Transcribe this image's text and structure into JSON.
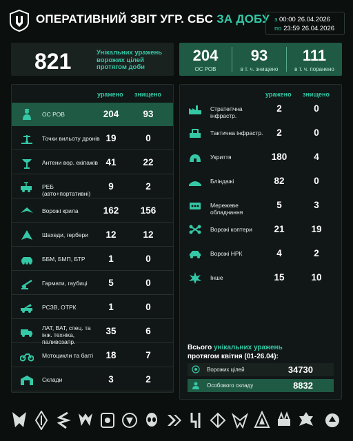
{
  "header": {
    "title_main": "ОПЕРАТИВНИЙ ЗВІТ УГР. СБС",
    "title_accent": "ЗА ДОБУ",
    "date_from_label": "з",
    "date_from": "00:00 26.04.2026",
    "date_to_label": "по",
    "date_to": "23:59 26.04.2026"
  },
  "summary": {
    "unique_total": "821",
    "unique_text": "Унікальних уражень ворожих цілей протягом доби",
    "personnel": [
      {
        "value": "204",
        "label": "ОС РОВ"
      },
      {
        "value": "93",
        "label": "в т. ч. знищено"
      },
      {
        "value": "111",
        "label": "в т. ч. поранено"
      }
    ]
  },
  "columns": {
    "hit": "уражено",
    "destroyed": "знищено"
  },
  "left_table": [
    {
      "name": "ОС РОВ",
      "hit": "204",
      "destroyed": "93",
      "icon": "soldier-icon"
    },
    {
      "name": "Точки вильоту дронів",
      "hit": "19",
      "destroyed": "0",
      "icon": "drone-launch-point-icon"
    },
    {
      "name": "Антени вор. екіпажів",
      "hit": "41",
      "destroyed": "22",
      "icon": "antenna-icon"
    },
    {
      "name": "РЕБ (авто+портативні)",
      "hit": "9",
      "destroyed": "2",
      "icon": "ew-vehicle-icon"
    },
    {
      "name": "Ворожі крила",
      "hit": "162",
      "destroyed": "156",
      "icon": "wing-drone-icon"
    },
    {
      "name": "Шахеди, гербери",
      "hit": "12",
      "destroyed": "12",
      "icon": "shahed-icon"
    },
    {
      "name": "ББМ, БМП, БТР",
      "hit": "1",
      "destroyed": "0",
      "icon": "apc-icon"
    },
    {
      "name": "Гармати, гаубиці",
      "hit": "5",
      "destroyed": "0",
      "icon": "howitzer-icon"
    },
    {
      "name": "РСЗВ, ОТРК",
      "hit": "1",
      "destroyed": "0",
      "icon": "mlrs-icon"
    },
    {
      "name": "ЛАТ, ВАТ, спец. та інж. техніка, паливозапр.",
      "hit": "35",
      "destroyed": "6",
      "icon": "truck-icon"
    },
    {
      "name": "Мотоцикли та баггі",
      "hit": "18",
      "destroyed": "7",
      "icon": "motorcycle-icon"
    },
    {
      "name": "Склади",
      "hit": "3",
      "destroyed": "2",
      "icon": "warehouse-icon"
    }
  ],
  "right_table": [
    {
      "name": "Стратегічна інфрастр.",
      "hit": "2",
      "destroyed": "0",
      "icon": "factory-icon"
    },
    {
      "name": "Тактична інфрастр.",
      "hit": "2",
      "destroyed": "0",
      "icon": "tactical-infra-icon"
    },
    {
      "name": "Укриття",
      "hit": "180",
      "destroyed": "4",
      "icon": "shelter-icon"
    },
    {
      "name": "Бліндажі",
      "hit": "82",
      "destroyed": "0",
      "icon": "dugout-icon"
    },
    {
      "name": "Мережеве обладнання",
      "hit": "5",
      "destroyed": "3",
      "icon": "network-equipment-icon"
    },
    {
      "name": "Ворожі коптери",
      "hit": "21",
      "destroyed": "19",
      "icon": "quadcopter-icon"
    },
    {
      "name": "Ворожі НРК",
      "hit": "4",
      "destroyed": "2",
      "icon": "ugv-icon"
    },
    {
      "name": "Інше",
      "hit": "15",
      "destroyed": "10",
      "icon": "explosion-icon"
    }
  ],
  "totals": {
    "line1_prefix": "Всього",
    "line1_accent": "унікальних уражень",
    "line2": "протягом квітня (01-26.04):",
    "rows": [
      {
        "name": "Ворожих цілей",
        "value": "34730",
        "icon": "target-icon"
      },
      {
        "name": "Особового складу",
        "value": "8832",
        "icon": "personnel-icon"
      }
    ]
  },
  "colors": {
    "accent": "#35c8a6",
    "highlight": "#1f5a45",
    "background": "#0b0f0e"
  }
}
